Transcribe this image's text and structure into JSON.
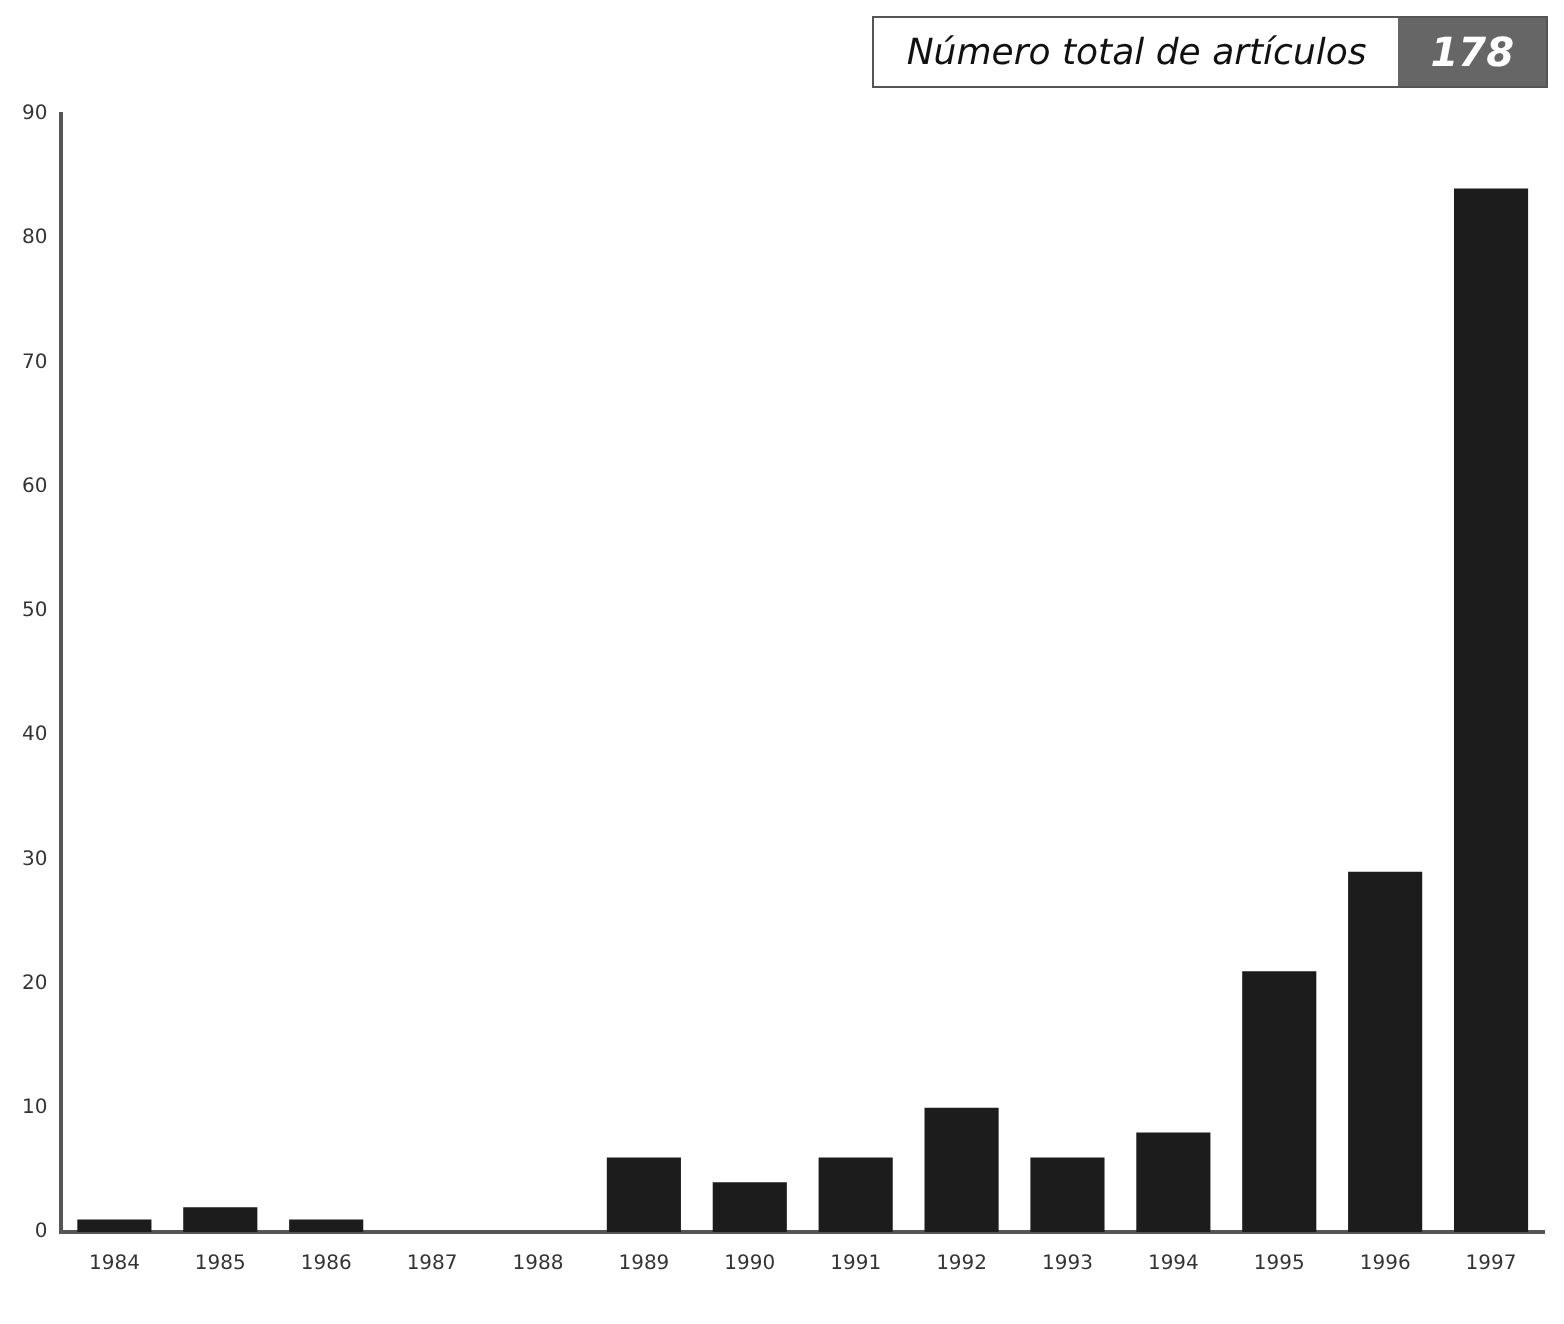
{
  "chart_data": {
    "type": "bar",
    "title": "Número total de artículos",
    "annotations": [
      "178"
    ],
    "categories": [
      "1984",
      "1985",
      "1986",
      "1987",
      "1988",
      "1989",
      "1990",
      "1991",
      "1992",
      "1993",
      "1994",
      "1995",
      "1996",
      "1997"
    ],
    "values": [
      1,
      2,
      1,
      0,
      0,
      6,
      4,
      6,
      10,
      6,
      8,
      21,
      29,
      84
    ],
    "color": "#1c1c1c",
    "ylim": [
      0,
      90
    ],
    "yticks": [
      0,
      10,
      20,
      30,
      40,
      50,
      60,
      70,
      80,
      90
    ],
    "grid": false,
    "legend": false
  }
}
